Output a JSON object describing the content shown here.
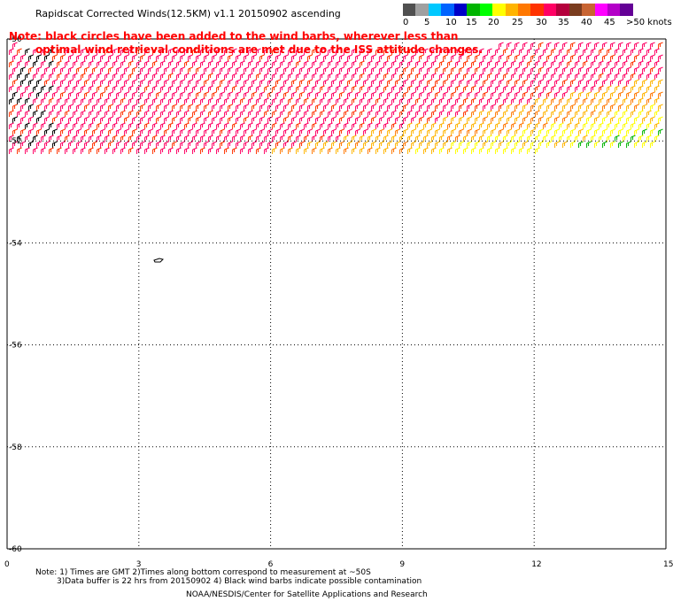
{
  "title": "Rapidscat Corrected Winds(12.5KM) v1.1 20150902 ascending",
  "note": {
    "line1": "Note: black circles have been added to the wind barbs, wherever less than",
    "line2": "optimal wind retrieval conditions are met due to the ISS attitude changes."
  },
  "legend": {
    "colors": [
      "#505050",
      "#a0a0a0",
      "#00c8ff",
      "#0064ff",
      "#0000c8",
      "#00b400",
      "#00ff00",
      "#ffff00",
      "#ffb400",
      "#ff7800",
      "#ff3200",
      "#ff0064",
      "#b4003c",
      "#7a3c1e",
      "#c86432",
      "#ff00ff",
      "#b400c8",
      "#640096"
    ],
    "labels": [
      "0",
      "5",
      "10",
      "15",
      "20",
      "25",
      "30",
      "35",
      "40",
      "45",
      ">50 knots"
    ]
  },
  "axes": {
    "x_ticks": [
      "0",
      "3",
      "6",
      "9",
      "12",
      "15"
    ],
    "y_ticks": [
      "-50",
      "-52",
      "-54",
      "-56",
      "-58",
      "-60"
    ]
  },
  "footer": {
    "line1": "Note: 1) Times are GMT 2)Times along bottom correspond to measurement at ~50S",
    "line2": "3)Data buffer is 22 hrs from 20150902 4) Black wind barbs indicate possible contamination",
    "line3": "NOAA/NESDIS/Center for Satellite Applications and Research"
  },
  "colors": {
    "grid": "#000000",
    "note_text": "#ff0000"
  }
}
